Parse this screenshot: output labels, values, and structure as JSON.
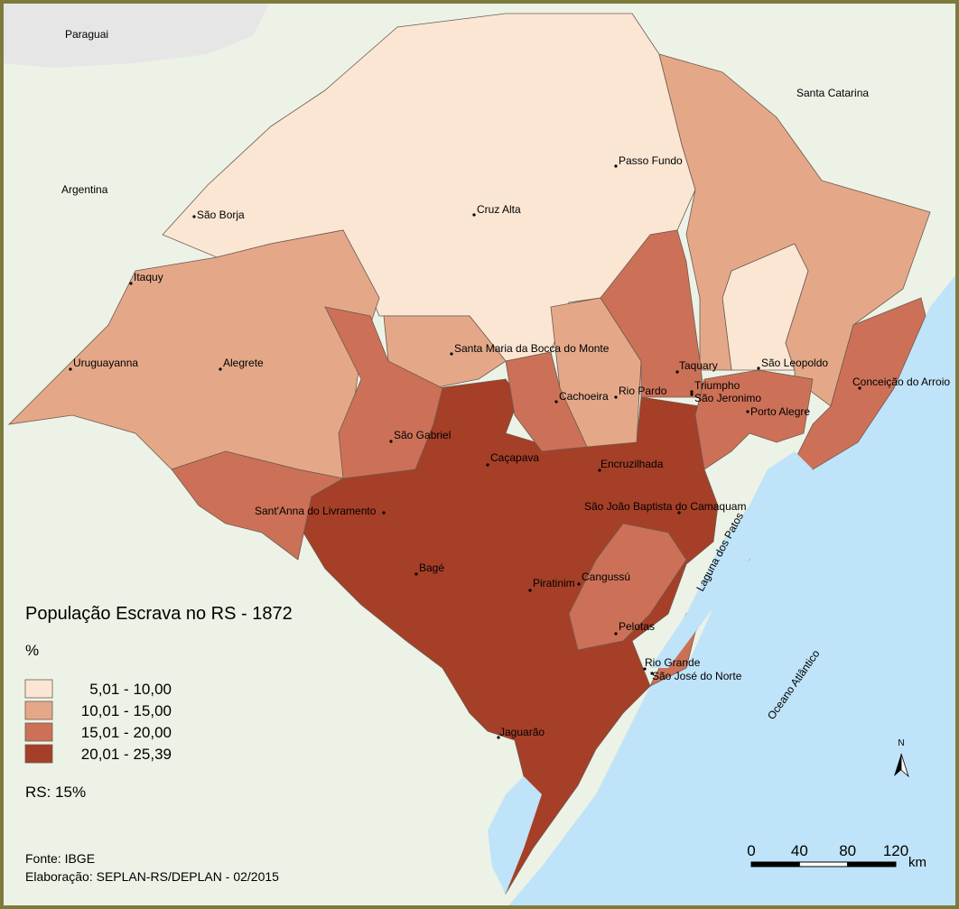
{
  "map": {
    "title": "População Escrava no RS - 1872",
    "unit": "%",
    "legend": [
      {
        "label": "5,01 - 10,00",
        "color": "#fbe6d4"
      },
      {
        "label": "10,01 - 15,00",
        "color": "#e4a889"
      },
      {
        "label": "15,01 - 20,00",
        "color": "#cc7157"
      },
      {
        "label": "20,01 - 25,39",
        "color": "#a63f27"
      }
    ],
    "state_average": "RS: 15%",
    "source": "Fonte: IBGE",
    "author": "Elaboração: SEPLAN-RS/DEPLAN - 02/2015",
    "neighbors": [
      "Paraguai",
      "Argentina",
      "Santa Catarina"
    ],
    "water": [
      "Laguna dos Patos",
      "Oceano Atlântico"
    ],
    "cities": [
      "São Borja",
      "Cruz Alta",
      "Passo Fundo",
      "Itaquy",
      "Uruguayanna",
      "Alegrete",
      "Santa Maria da Bocca do Monte",
      "Taquary",
      "Triumpho",
      "São Leopoldo",
      "Conceição do Arroio",
      "Cachoeira",
      "Rio Pardo",
      "São Jeronimo",
      "Porto Alegre",
      "São Gabriel",
      "Caçapava",
      "Encruzilhada",
      "São João Baptista do Camaquam",
      "Sant'Anna do Livramento",
      "Bagé",
      "Piratinim",
      "Cangussú",
      "Pelotas",
      "Rio Grande",
      "São José do Norte",
      "Jaguarão"
    ],
    "scale": {
      "ticks": [
        0,
        40,
        80,
        120
      ],
      "unit": "km"
    },
    "north": "N"
  }
}
